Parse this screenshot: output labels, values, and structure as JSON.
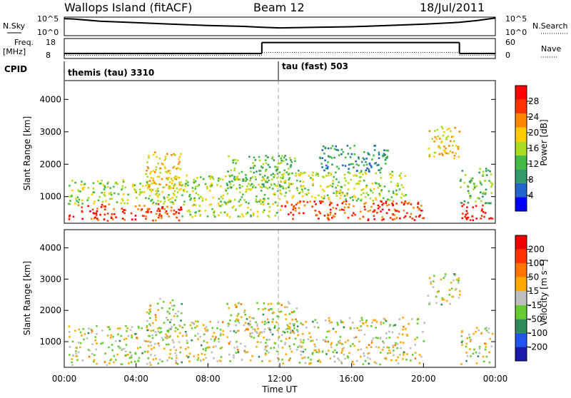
{
  "header": {
    "title": "Wallops Island (fitACF)",
    "beam": "Beam 12",
    "date": "18/Jul/2011"
  },
  "side_labels": {
    "nsky": "N.Sky",
    "freq_line1": "Freq.",
    "freq_line2": "[MHz]",
    "cpid": "CPID",
    "nsearch": "N.Search",
    "nave": "Nave"
  },
  "cpid_segments": [
    {
      "label": "themis (tau) 3310",
      "start_hour": 0
    },
    {
      "label": "tau (fast) 503",
      "start_hour": 12
    }
  ],
  "colors": {
    "power_scale": [
      "#0000ff",
      "#2266cc",
      "#339966",
      "#44bb44",
      "#aadd22",
      "#ffcc00",
      "#ff8800",
      "#ff3300",
      "#ff0000"
    ],
    "velocity_scale": [
      "#1a1aaa",
      "#2255ee",
      "#2e8b57",
      "#66cc33",
      "#bebebe",
      "#ffaa00",
      "#ff7700",
      "#ff3300",
      "#ee0000"
    ]
  },
  "chart_data": [
    {
      "type": "line",
      "name": "noise",
      "ylabel_left": "N.Sky",
      "ylabel_right": "N.Search",
      "y_ticks_left": [
        "10^5",
        "10^0"
      ],
      "y_ticks_right": [
        "10^5",
        "10^0"
      ],
      "x_hours": [
        0,
        0.5,
        2,
        4,
        6,
        8,
        10,
        11,
        12,
        14,
        16,
        18,
        20,
        22,
        23,
        24
      ],
      "sky_level": [
        0.92,
        0.9,
        0.78,
        0.7,
        0.62,
        0.55,
        0.5,
        0.45,
        0.42,
        0.45,
        0.48,
        0.55,
        0.62,
        0.72,
        0.82,
        0.95
      ]
    },
    {
      "type": "line",
      "name": "frequency",
      "ylabel_left": "Freq. [MHz]",
      "ylabel_right": "Nave",
      "y_ticks_left": [
        "18",
        "8"
      ],
      "y_ticks_right": [
        "60",
        "0"
      ],
      "freq_steps": [
        {
          "x_start": 0,
          "x_end": 11,
          "mhz": 10.5
        },
        {
          "x_start": 11,
          "x_end": 22,
          "mhz": 16
        },
        {
          "x_start": 22,
          "x_end": 24,
          "mhz": 10.5
        }
      ],
      "nave_steps": [
        {
          "x_start": 0,
          "x_end": 11,
          "value": 10
        },
        {
          "x_start": 11,
          "x_end": 22,
          "value": 18
        },
        {
          "x_start": 22,
          "x_end": 24,
          "value": 10
        }
      ]
    },
    {
      "type": "heatmap",
      "name": "power",
      "ylabel": "Slant Range [km]",
      "y_ticks": [
        "1000",
        "2000",
        "3000",
        "4000"
      ],
      "y_tick_values": [
        1000,
        2000,
        3000,
        4000
      ],
      "ylim": [
        180,
        4580
      ],
      "xlim_hours": [
        0,
        24
      ],
      "colorbar_label": "Power [dB]",
      "colorbar_ticks": [
        "4",
        "8",
        "12",
        "16",
        "20",
        "24",
        "28"
      ],
      "scatter_regions": [
        {
          "x0": 0.2,
          "x1": 6.5,
          "y0": 280,
          "y1": 800,
          "level": 7
        },
        {
          "x0": 0.2,
          "x1": 6.5,
          "y0": 800,
          "y1": 1550,
          "level": 4
        },
        {
          "x0": 4.5,
          "x1": 6.5,
          "y0": 1000,
          "y1": 2400,
          "level": 5
        },
        {
          "x0": 6.5,
          "x1": 12,
          "y0": 400,
          "y1": 1700,
          "level": 4
        },
        {
          "x0": 9,
          "x1": 13,
          "y0": 1300,
          "y1": 2300,
          "level": 3
        },
        {
          "x0": 12,
          "x1": 20,
          "y0": 300,
          "y1": 900,
          "level": 7
        },
        {
          "x0": 12,
          "x1": 19,
          "y0": 900,
          "y1": 1800,
          "level": 4
        },
        {
          "x0": 14,
          "x1": 18,
          "y0": 1800,
          "y1": 2600,
          "level": 2
        },
        {
          "x0": 20.2,
          "x1": 22,
          "y0": 2200,
          "y1": 3200,
          "level": 5
        },
        {
          "x0": 22,
          "x1": 23.8,
          "y0": 300,
          "y1": 800,
          "level": 8
        },
        {
          "x0": 22,
          "x1": 23.8,
          "y0": 800,
          "y1": 1900,
          "level": 3
        }
      ]
    },
    {
      "type": "heatmap",
      "name": "velocity",
      "ylabel": "Slant Range [km]",
      "y_ticks": [
        "1000",
        "2000",
        "3000",
        "4000"
      ],
      "y_tick_values": [
        1000,
        2000,
        3000,
        4000
      ],
      "ylim": [
        180,
        4580
      ],
      "xlim_hours": [
        0,
        24
      ],
      "xlabel": "Time UT",
      "x_ticks": [
        "00:00",
        "04:00",
        "08:00",
        "12:00",
        "16:00",
        "20:00",
        "00:00"
      ],
      "x_tick_hours": [
        0,
        4,
        8,
        12,
        16,
        20,
        24
      ],
      "colorbar_label": "Velocity [m s⁻¹]",
      "colorbar_ticks": [
        "-200",
        "-100",
        "-50",
        "-15",
        "15",
        "50",
        "100",
        "200"
      ],
      "scatter_regions": [
        {
          "x0": 0.2,
          "x1": 6.5,
          "y0": 280,
          "y1": 1550,
          "level": 4
        },
        {
          "x0": 4.5,
          "x1": 6.5,
          "y0": 1000,
          "y1": 2400,
          "level": 4
        },
        {
          "x0": 6.5,
          "x1": 12,
          "y0": 400,
          "y1": 1700,
          "level": 4
        },
        {
          "x0": 9,
          "x1": 13,
          "y0": 1300,
          "y1": 2300,
          "level": 4
        },
        {
          "x0": 12,
          "x1": 20,
          "y0": 300,
          "y1": 1800,
          "level": 4
        },
        {
          "x0": 20.2,
          "x1": 22,
          "y0": 2200,
          "y1": 3200,
          "level": 4
        },
        {
          "x0": 22,
          "x1": 23.8,
          "y0": 300,
          "y1": 1500,
          "level": 4
        }
      ]
    }
  ]
}
